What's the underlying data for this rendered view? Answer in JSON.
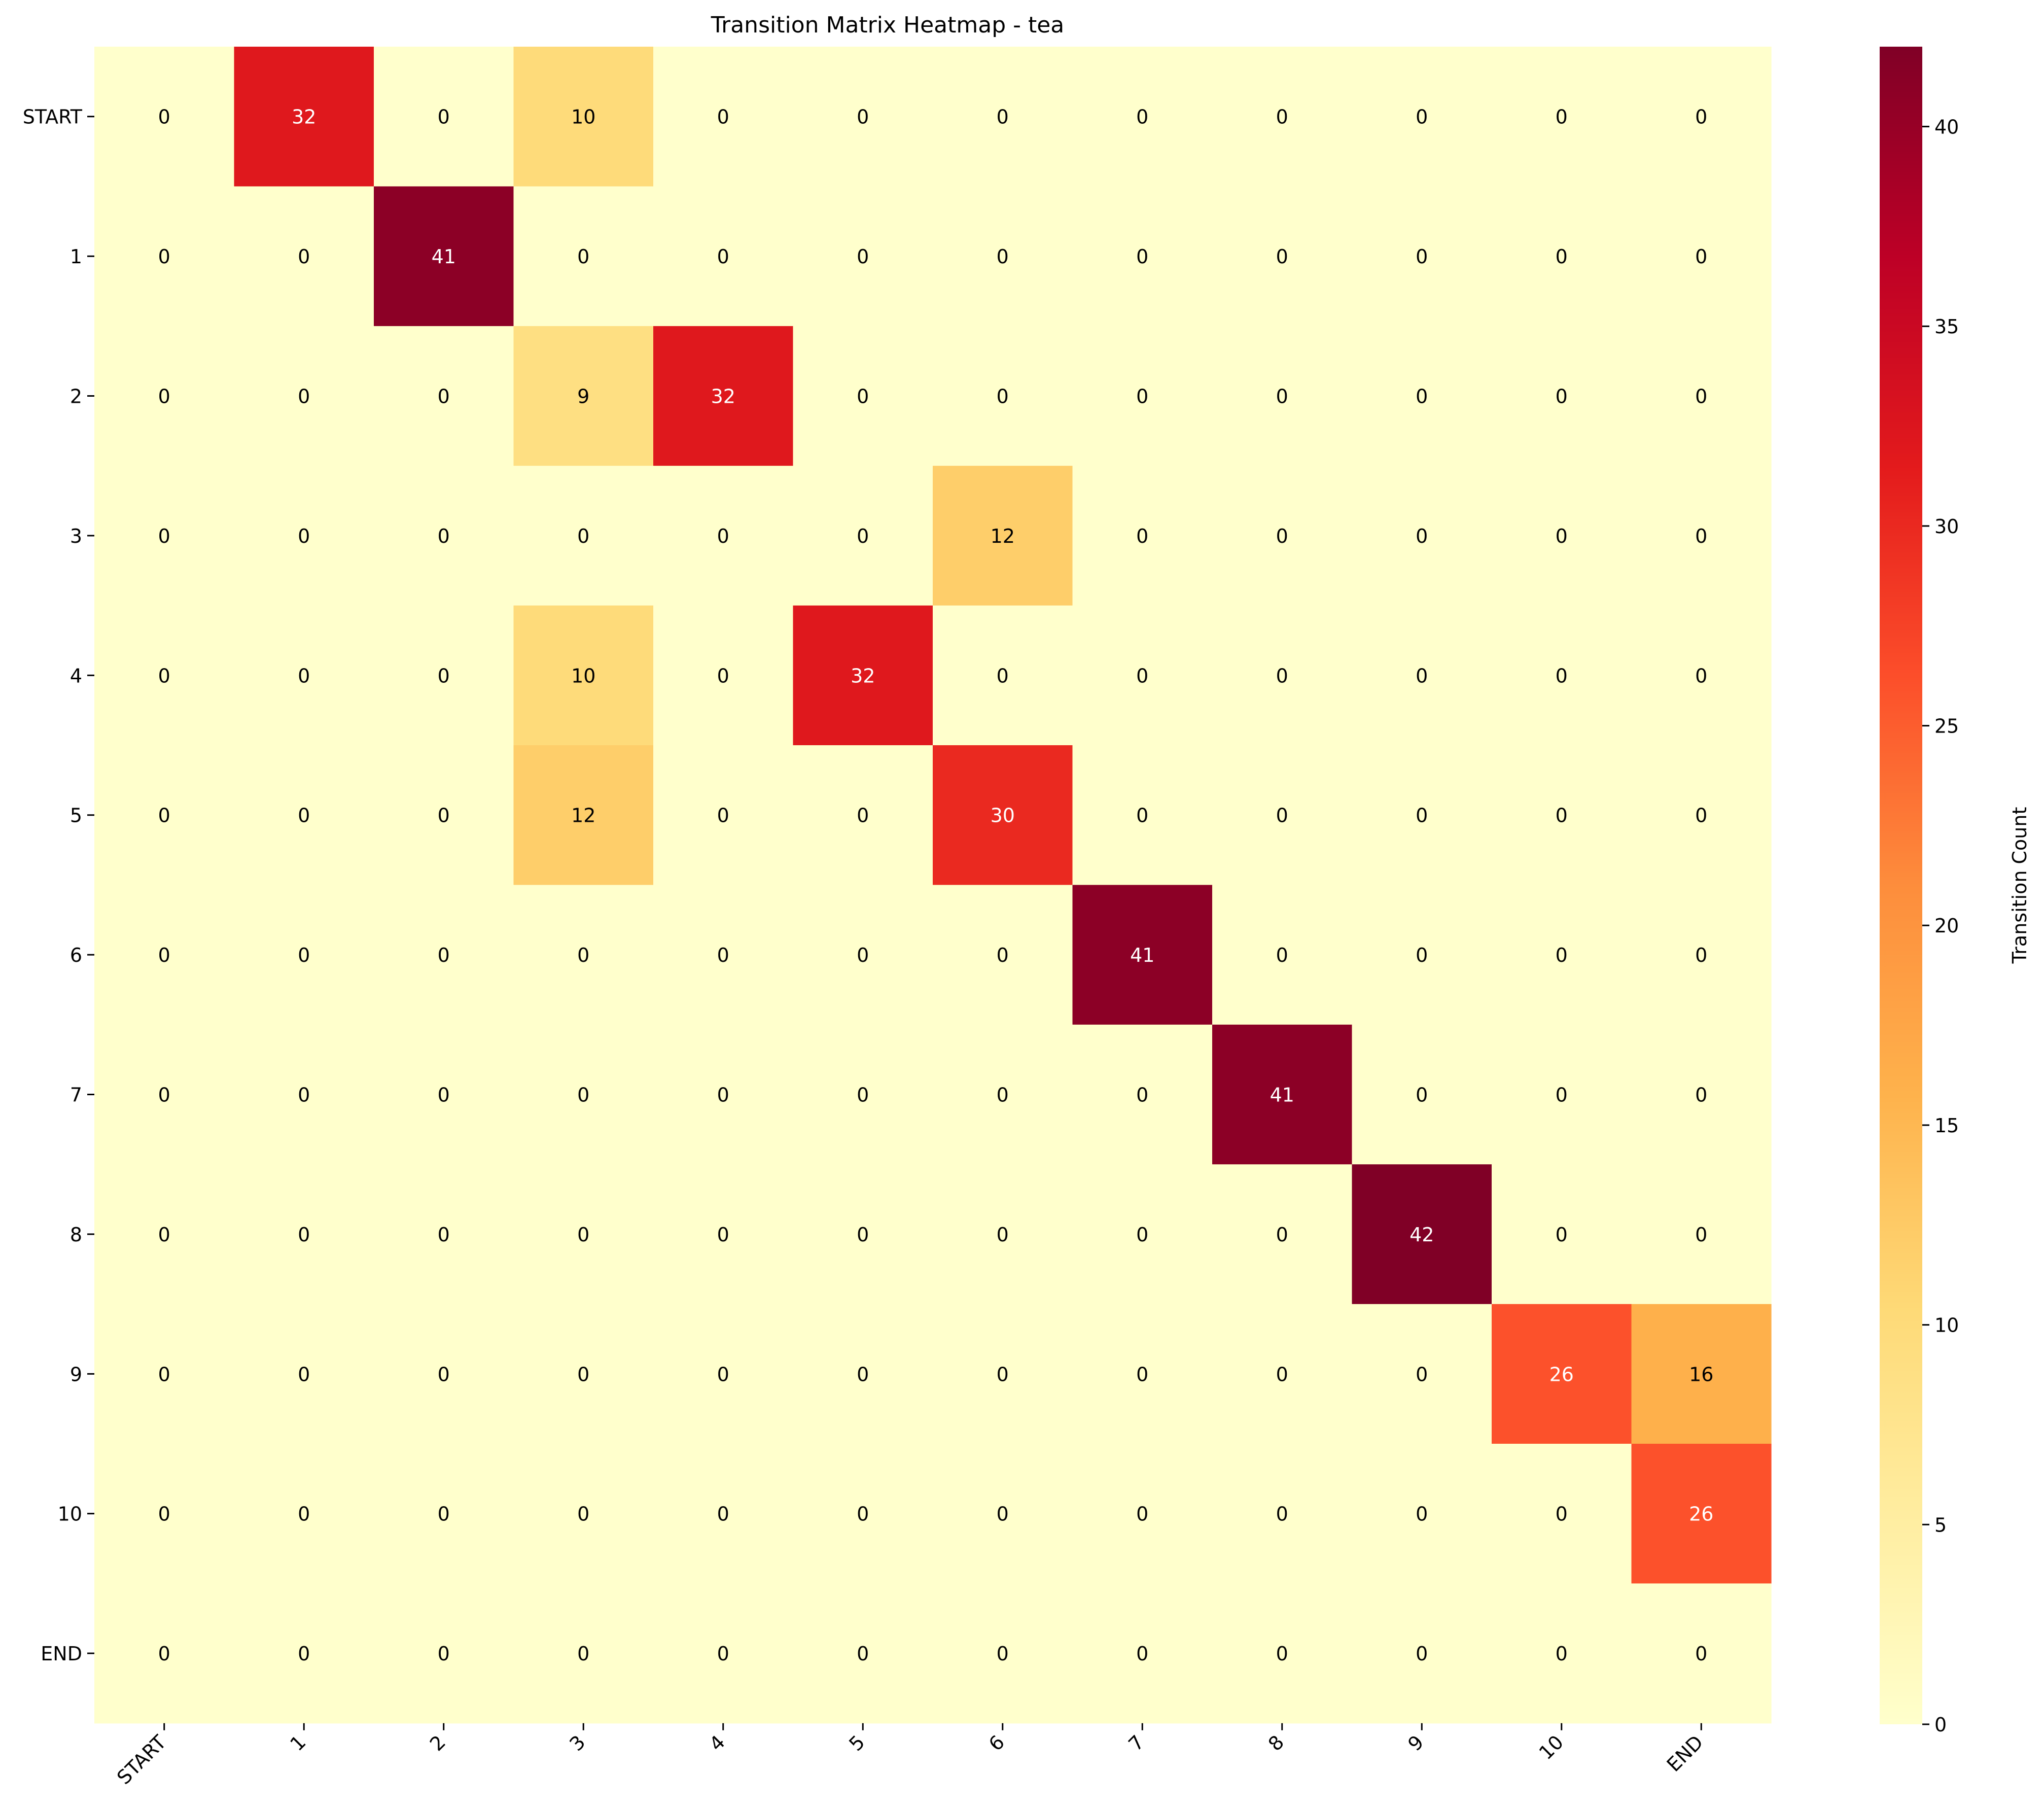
{
  "chart_data": {
    "type": "heatmap",
    "title": "Transition Matrix Heatmap - tea",
    "xlabel": "",
    "ylabel": "",
    "row_labels": [
      "START",
      "1",
      "2",
      "3",
      "4",
      "5",
      "6",
      "7",
      "8",
      "9",
      "10",
      "END"
    ],
    "col_labels": [
      "START",
      "1",
      "2",
      "3",
      "4",
      "5",
      "6",
      "7",
      "8",
      "9",
      "10",
      "END"
    ],
    "values": [
      [
        0,
        32,
        0,
        10,
        0,
        0,
        0,
        0,
        0,
        0,
        0,
        0
      ],
      [
        0,
        0,
        41,
        0,
        0,
        0,
        0,
        0,
        0,
        0,
        0,
        0
      ],
      [
        0,
        0,
        0,
        9,
        32,
        0,
        0,
        0,
        0,
        0,
        0,
        0
      ],
      [
        0,
        0,
        0,
        0,
        0,
        0,
        12,
        0,
        0,
        0,
        0,
        0
      ],
      [
        0,
        0,
        0,
        10,
        0,
        32,
        0,
        0,
        0,
        0,
        0,
        0
      ],
      [
        0,
        0,
        0,
        12,
        0,
        0,
        30,
        0,
        0,
        0,
        0,
        0
      ],
      [
        0,
        0,
        0,
        0,
        0,
        0,
        0,
        41,
        0,
        0,
        0,
        0
      ],
      [
        0,
        0,
        0,
        0,
        0,
        0,
        0,
        0,
        41,
        0,
        0,
        0
      ],
      [
        0,
        0,
        0,
        0,
        0,
        0,
        0,
        0,
        0,
        42,
        0,
        0
      ],
      [
        0,
        0,
        0,
        0,
        0,
        0,
        0,
        0,
        0,
        0,
        26,
        16
      ],
      [
        0,
        0,
        0,
        0,
        0,
        0,
        0,
        0,
        0,
        0,
        0,
        26
      ],
      [
        0,
        0,
        0,
        0,
        0,
        0,
        0,
        0,
        0,
        0,
        0,
        0
      ]
    ],
    "colorbar": {
      "label": "Transition Count",
      "range": [
        0,
        42
      ],
      "ticks": [
        "0",
        "5",
        "10",
        "15",
        "20",
        "25",
        "30",
        "35",
        "40"
      ],
      "colormap": "YlOrRd",
      "stops": [
        "#ffffcc",
        "#ffeda0",
        "#fed976",
        "#feb24c",
        "#fd8d3c",
        "#fc4e2a",
        "#e31a1c",
        "#bd0026",
        "#800026"
      ]
    },
    "annotation_text_colors": {
      "light": "#ffffff",
      "dark": "#000000"
    }
  }
}
